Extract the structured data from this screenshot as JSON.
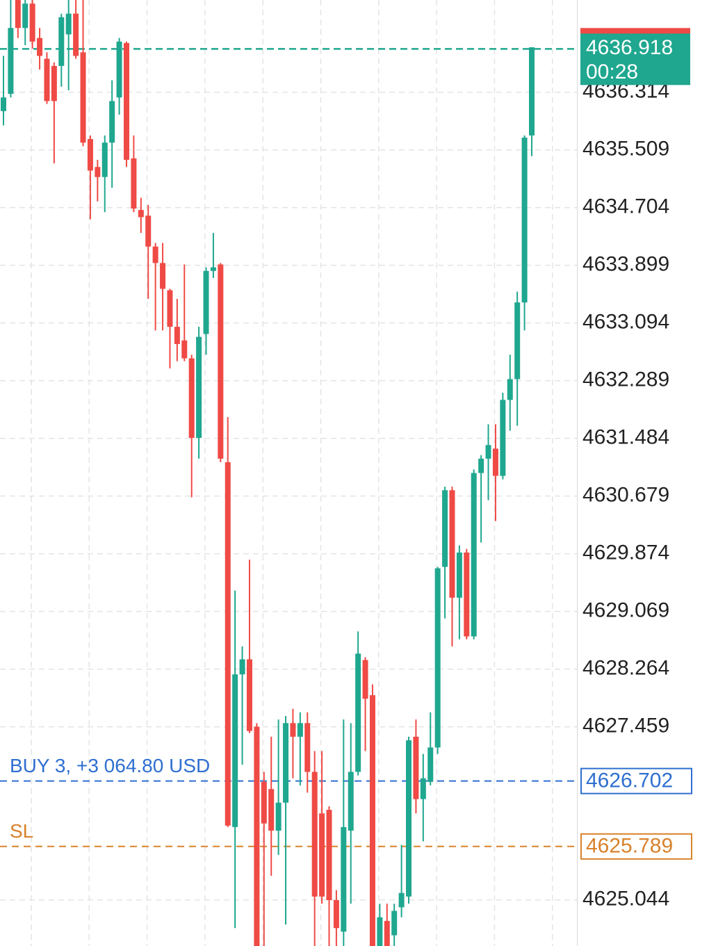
{
  "chart_data": {
    "type": "candlestick",
    "ylim": [
      4624.4,
      4637.6
    ],
    "yticks": [
      4636.314,
      4635.509,
      4634.704,
      4633.899,
      4633.094,
      4632.289,
      4631.484,
      4630.679,
      4629.874,
      4629.069,
      4628.264,
      4627.459,
      4625.044
    ],
    "grid": true,
    "up_color": "#1fa78f",
    "down_color": "#ef4a45",
    "open": [
      4636.05,
      4636.29,
      4637.6,
      4637.21,
      4637.55,
      4637.07,
      4636.78,
      4636.68,
      4636.68,
      4637.12,
      4637.41,
      4636.87,
      4635.66,
      4635.27,
      4635.13,
      4635.61,
      4636.24,
      4637.0,
      4635.39,
      4634.67,
      4634.59,
      4634.16,
      4633.93,
      4633.55,
      4633.04,
      4632.85,
      4632.6,
      4631.49,
      4632.94,
      4633.82,
      4633.91,
      4631.15,
      4626.06,
      4628.19,
      4628.4,
      4627.46,
      4626.69,
      4626.59,
      4626.01,
      4626.4,
      4627.51,
      4627.32,
      4627.51,
      4626.83,
      4626.25,
      4626.3,
      4625.04,
      4624.6,
      4626.01,
      4626.83,
      4628.39,
      4627.9,
      4624.2,
      4624.75,
      4624.55,
      4624.94,
      4625.09,
      4627.32,
      4626.45,
      4626.69,
      4627.17,
      4629.69,
      4630.76,
      4629.26,
      4629.89,
      4628.72,
      4631.0,
      4631.2,
      4631.34,
      4630.96,
      4632.02,
      4632.31,
      4633.38,
      4635.71
    ],
    "high": [
      4636.82,
      4637.6,
      4637.6,
      4637.6,
      4637.6,
      4637.21,
      4636.87,
      4636.73,
      4637.41,
      4637.6,
      4637.6,
      4637.6,
      4635.71,
      4635.37,
      4635.71,
      4636.48,
      4637.07,
      4637.02,
      4635.71,
      4634.84,
      4634.74,
      4634.21,
      4634.21,
      4633.57,
      4633.43,
      4633.91,
      4632.65,
      4633.04,
      4633.87,
      4634.35,
      4633.93,
      4631.78,
      4629.36,
      4628.58,
      4629.79,
      4627.51,
      4626.83,
      4627.32,
      4627.56,
      4627.61,
      4627.71,
      4627.66,
      4627.66,
      4627.12,
      4627.12,
      4626.35,
      4625.18,
      4627.56,
      4627.51,
      4628.79,
      4628.43,
      4628.05,
      4624.99,
      4624.99,
      4624.99,
      4625.81,
      4627.32,
      4627.56,
      4627.08,
      4627.66,
      4629.69,
      4630.81,
      4630.81,
      4629.99,
      4629.94,
      4631.05,
      4631.25,
      4631.68,
      4631.68,
      4632.12,
      4632.65,
      4633.53,
      4635.71,
      4636.94
    ],
    "low": [
      4635.85,
      4636.24,
      4637.07,
      4636.97,
      4636.92,
      4636.63,
      4636.15,
      4635.32,
      4636.39,
      4636.34,
      4636.78,
      4635.56,
      4634.54,
      4634.79,
      4634.64,
      4634.98,
      4636.0,
      4635.27,
      4634.64,
      4634.35,
      4633.43,
      4632.99,
      4632.99,
      4632.46,
      4632.56,
      4632.56,
      4630.66,
      4631.2,
      4632.65,
      4633.72,
      4631.15,
      4626.06,
      4624.65,
      4626.93,
      4627.37,
      4624.1,
      4624.1,
      4625.38,
      4625.67,
      4624.7,
      4626.74,
      4626.64,
      4626.54,
      4624.1,
      4624.99,
      4624.1,
      4624.1,
      4624.1,
      4624.99,
      4626.78,
      4627.12,
      4624.1,
      4624.1,
      4624.1,
      4624.1,
      4624.8,
      4624.99,
      4626.25,
      4625.86,
      4626.64,
      4627.08,
      4628.97,
      4628.58,
      4628.68,
      4628.68,
      4628.68,
      4630.03,
      4630.62,
      4630.33,
      4630.91,
      4631.59,
      4631.66,
      4632.99,
      4635.42
    ],
    "close": [
      4636.24,
      4637.21,
      4637.21,
      4637.55,
      4637.02,
      4636.82,
      4636.19,
      4636.19,
      4637.36,
      4637.41,
      4636.82,
      4635.61,
      4635.22,
      4635.13,
      4635.61,
      4636.19,
      4637.02,
      4635.37,
      4634.69,
      4634.57,
      4634.16,
      4633.93,
      4633.57,
      4633.04,
      4632.8,
      4632.6,
      4631.49,
      4632.9,
      4633.82,
      4633.87,
      4631.2,
      4626.08,
      4628.19,
      4628.4,
      4627.4,
      4624.2,
      4626.11,
      4626.01,
      4626.4,
      4627.51,
      4627.32,
      4627.51,
      4626.83,
      4625.09,
      4625.09,
      4625.04,
      4624.65,
      4626.06,
      4626.83,
      4628.48,
      4627.85,
      4624.2,
      4624.8,
      4624.2,
      4624.89,
      4625.14,
      4627.27,
      4626.45,
      4626.74,
      4627.17,
      4629.67,
      4630.76,
      4629.26,
      4629.89,
      4628.72,
      4631.0,
      4631.2,
      4631.39,
      4630.96,
      4632.02,
      4632.31,
      4633.38,
      4635.68,
      4636.94
    ],
    "price_lines": [
      {
        "label": "BUY 3,  +3 064.80 USD",
        "value": 4626.702,
        "color": "#2f6fd0"
      },
      {
        "label": "SL",
        "value": 4625.789,
        "color": "#d9822b"
      }
    ],
    "current_price": {
      "value": 4636.918,
      "timer": "00:28",
      "color": "#1fa78f"
    }
  }
}
